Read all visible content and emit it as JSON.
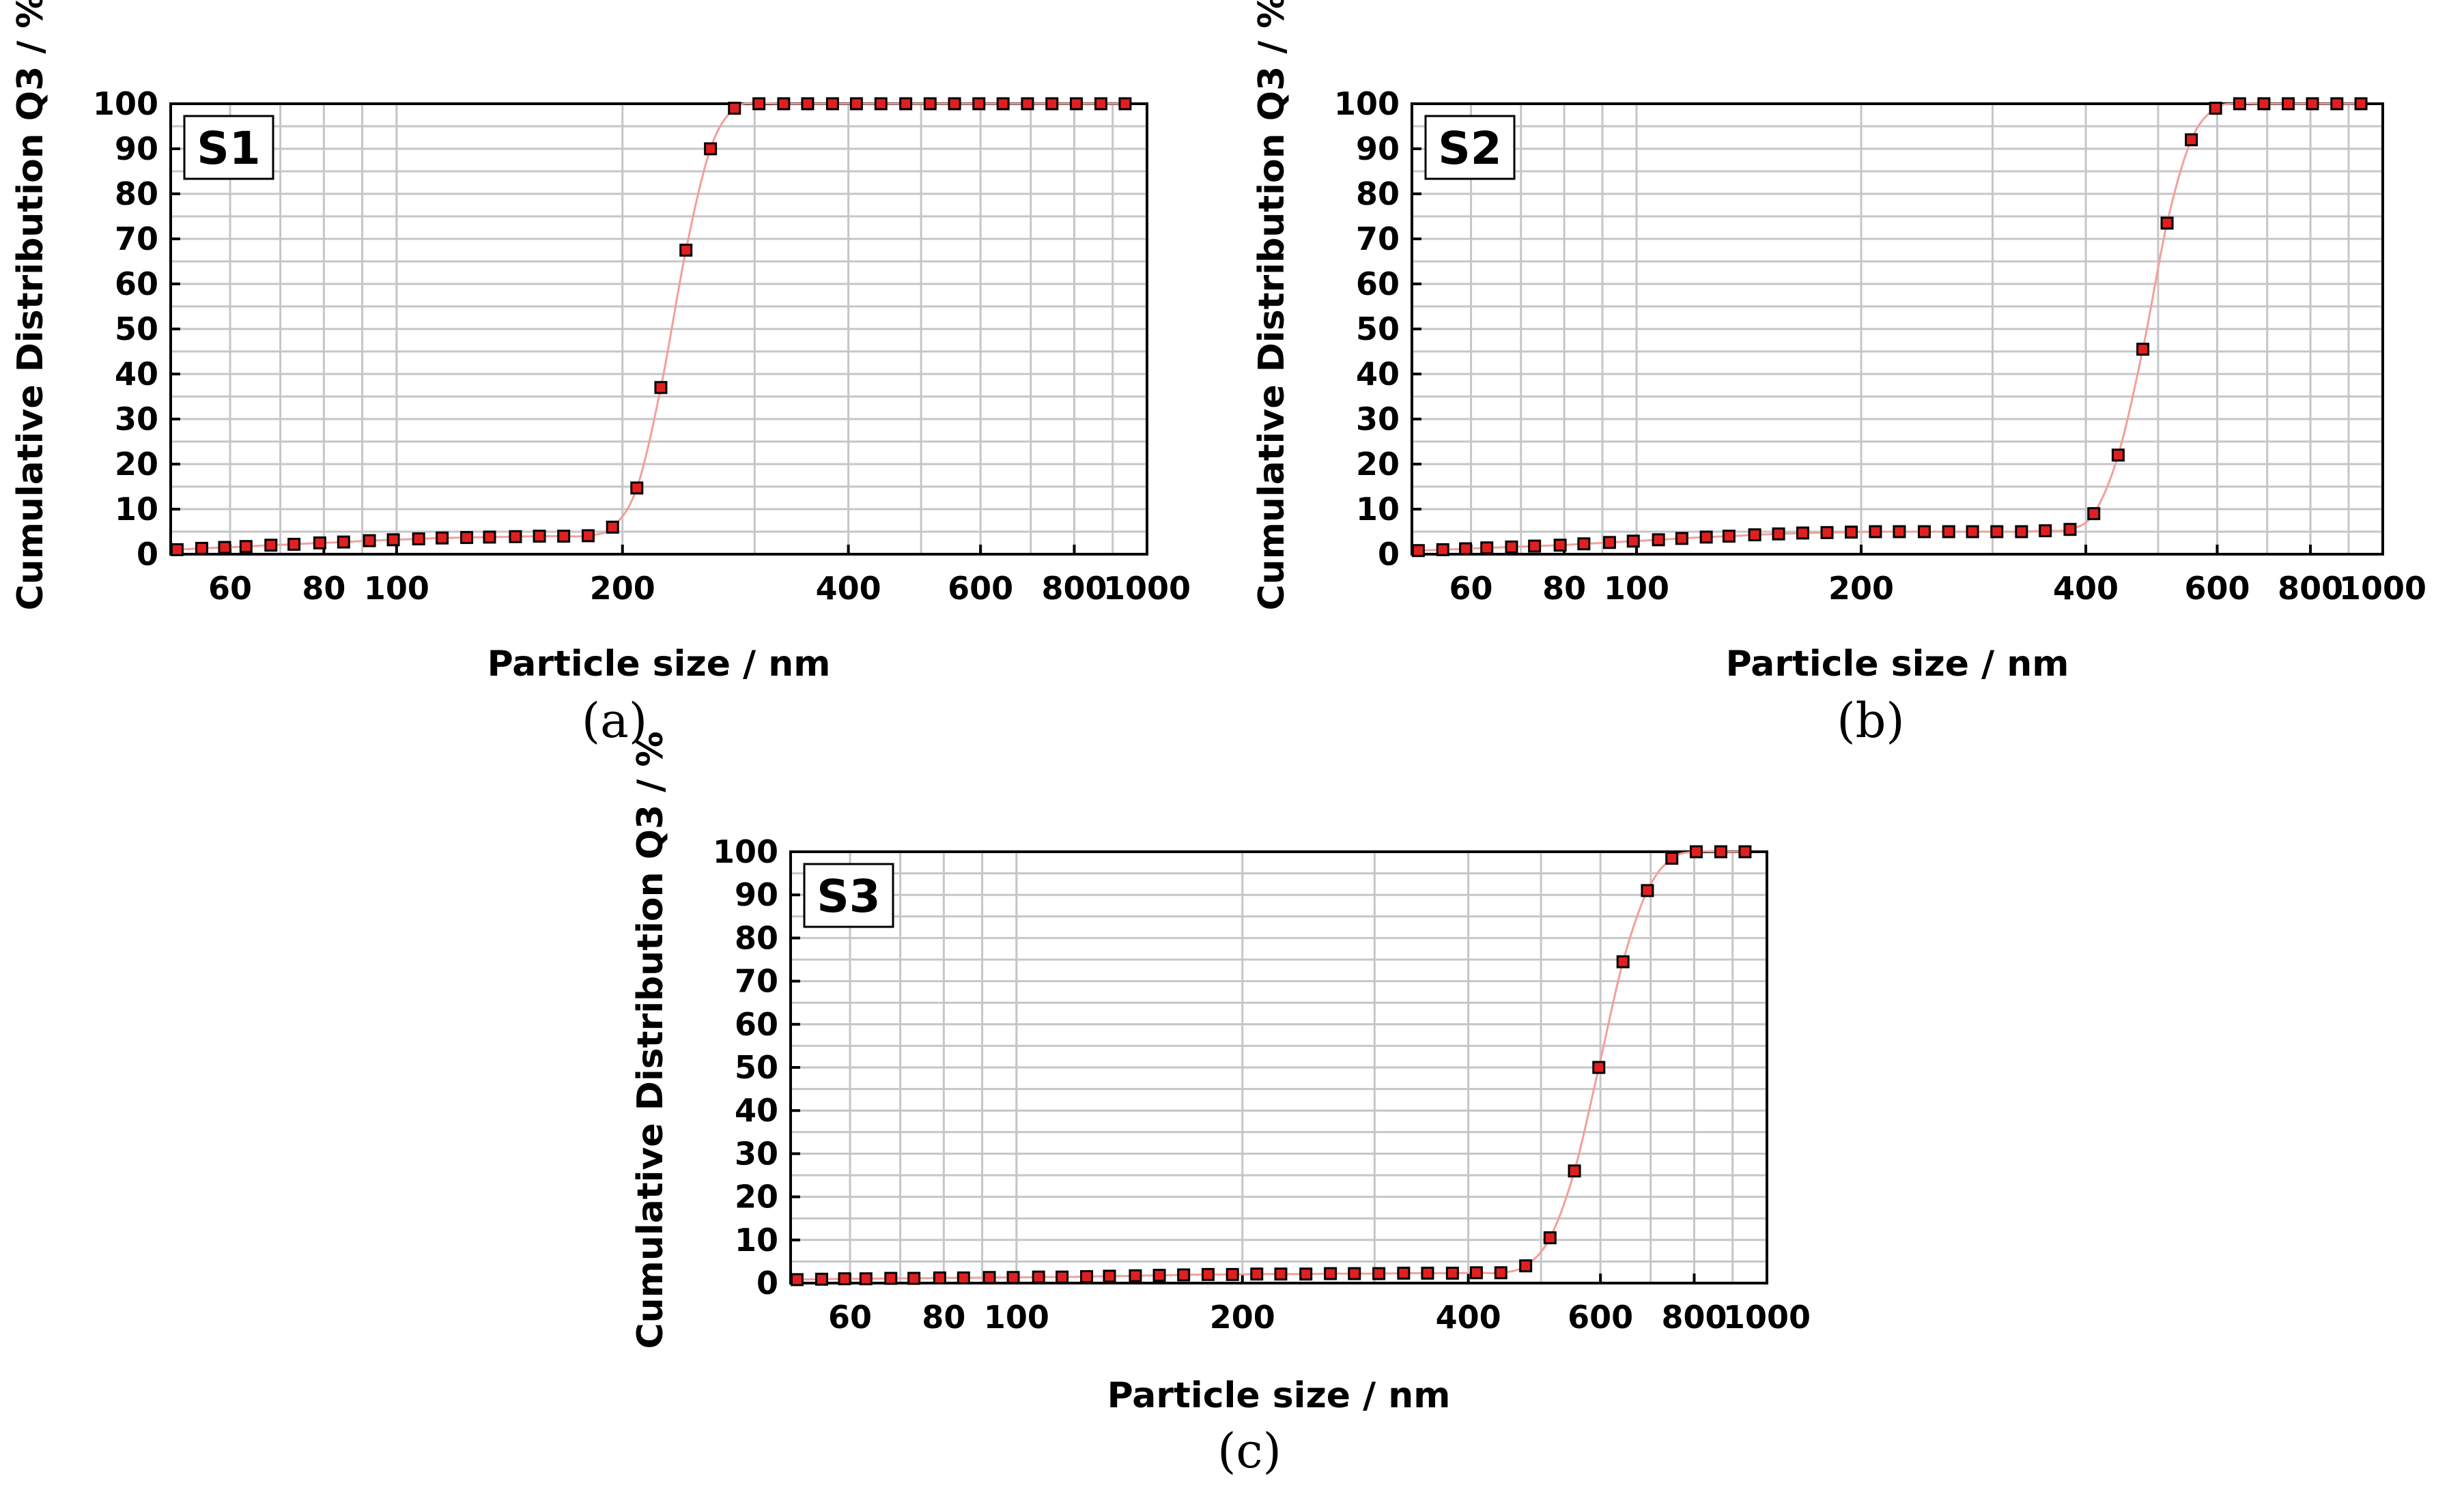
{
  "chart_data": [
    {
      "type": "scatter",
      "tag": "S1",
      "caption": "(a)",
      "xlabel": "Particle size / nm",
      "ylabel": "Cumulative Distribution Q3 / %",
      "xscale": "log",
      "xlim": [
        50,
        1000
      ],
      "ylim": [
        0,
        100
      ],
      "grid": true,
      "xticks": [
        60,
        80,
        100,
        200,
        400,
        600,
        800,
        1000
      ],
      "xtick_labels": [
        "60",
        "80",
        "100",
        "200",
        "400",
        "600",
        "800",
        "1000"
      ],
      "yticks": [
        0,
        10,
        20,
        30,
        40,
        50,
        60,
        70,
        80,
        90,
        100
      ],
      "ytick_labels": [
        "0",
        "10",
        "20",
        "30",
        "40",
        "50",
        "60",
        "70",
        "80",
        "90",
        "100"
      ],
      "x": [
        51,
        55,
        59,
        63,
        68,
        73,
        79,
        85,
        92,
        99,
        107,
        115,
        124,
        133,
        144,
        155,
        167,
        180,
        194,
        209,
        225,
        243,
        262,
        282,
        304,
        328,
        353,
        381,
        410,
        442,
        477,
        514,
        554,
        597,
        643,
        693,
        747,
        805,
        868,
        935
      ],
      "y": [
        1.0,
        1.3,
        1.5,
        1.7,
        2.0,
        2.2,
        2.5,
        2.7,
        3.0,
        3.2,
        3.4,
        3.6,
        3.7,
        3.8,
        3.9,
        4.0,
        4.0,
        4.1,
        6.0,
        14.7,
        37.0,
        67.5,
        90.0,
        99.0,
        100,
        100,
        100,
        100,
        100,
        100,
        100,
        100,
        100,
        100,
        100,
        100,
        100,
        100,
        100,
        100
      ]
    },
    {
      "type": "scatter",
      "tag": "S2",
      "caption": "(b)",
      "xlabel": "Particle size / nm",
      "ylabel": "Cumulative Distribution Q3 / %",
      "xscale": "log",
      "xlim": [
        50,
        1000
      ],
      "ylim": [
        0,
        100
      ],
      "grid": true,
      "xticks": [
        60,
        80,
        100,
        200,
        400,
        600,
        800,
        1000
      ],
      "xtick_labels": [
        "60",
        "80",
        "100",
        "200",
        "400",
        "600",
        "800",
        "1000"
      ],
      "yticks": [
        0,
        10,
        20,
        30,
        40,
        50,
        60,
        70,
        80,
        90,
        100
      ],
      "ytick_labels": [
        "0",
        "10",
        "20",
        "30",
        "40",
        "50",
        "60",
        "70",
        "80",
        "90",
        "100"
      ],
      "x": [
        51,
        55,
        59,
        63,
        68,
        73,
        79,
        85,
        92,
        99,
        107,
        115,
        124,
        133,
        144,
        155,
        167,
        180,
        194,
        209,
        225,
        243,
        262,
        282,
        304,
        328,
        353,
        381,
        410,
        442,
        477,
        514,
        554,
        597,
        643,
        693,
        747,
        805,
        868,
        935
      ],
      "y": [
        0.8,
        1.0,
        1.2,
        1.4,
        1.6,
        1.8,
        2.0,
        2.3,
        2.6,
        2.9,
        3.2,
        3.5,
        3.8,
        4.0,
        4.3,
        4.5,
        4.7,
        4.8,
        4.9,
        5.0,
        5.0,
        5.0,
        5.0,
        5.0,
        5.0,
        5.0,
        5.2,
        5.5,
        9.0,
        22.0,
        45.5,
        73.5,
        92.0,
        99.0,
        100,
        100,
        100,
        100,
        100,
        100
      ]
    },
    {
      "type": "scatter",
      "tag": "S3",
      "caption": "(c)",
      "xlabel": "Particle size / nm",
      "ylabel": "Cumulative Distribution Q3 / %",
      "xscale": "log",
      "xlim": [
        50,
        1000
      ],
      "ylim": [
        0,
        100
      ],
      "grid": true,
      "xticks": [
        60,
        80,
        100,
        200,
        400,
        600,
        800,
        1000
      ],
      "xtick_labels": [
        "60",
        "80",
        "100",
        "200",
        "400",
        "600",
        "800",
        "1000"
      ],
      "yticks": [
        0,
        10,
        20,
        30,
        40,
        50,
        60,
        70,
        80,
        90,
        100
      ],
      "ytick_labels": [
        "0",
        "10",
        "20",
        "30",
        "40",
        "50",
        "60",
        "70",
        "80",
        "90",
        "100"
      ],
      "x": [
        51,
        55,
        59,
        63,
        68,
        73,
        79,
        85,
        92,
        99,
        107,
        115,
        124,
        133,
        144,
        155,
        167,
        180,
        194,
        209,
        225,
        243,
        262,
        282,
        304,
        328,
        353,
        381,
        410,
        442,
        477,
        514,
        554,
        597,
        643,
        693,
        747,
        805,
        868,
        935
      ],
      "y": [
        0.8,
        0.9,
        1.0,
        1.0,
        1.1,
        1.1,
        1.2,
        1.2,
        1.3,
        1.3,
        1.4,
        1.4,
        1.5,
        1.6,
        1.7,
        1.8,
        1.9,
        2.0,
        2.0,
        2.1,
        2.1,
        2.1,
        2.2,
        2.2,
        2.2,
        2.3,
        2.3,
        2.3,
        2.4,
        2.4,
        4.0,
        10.5,
        26.0,
        50.0,
        74.5,
        91.0,
        98.5,
        100,
        100,
        100
      ]
    }
  ]
}
